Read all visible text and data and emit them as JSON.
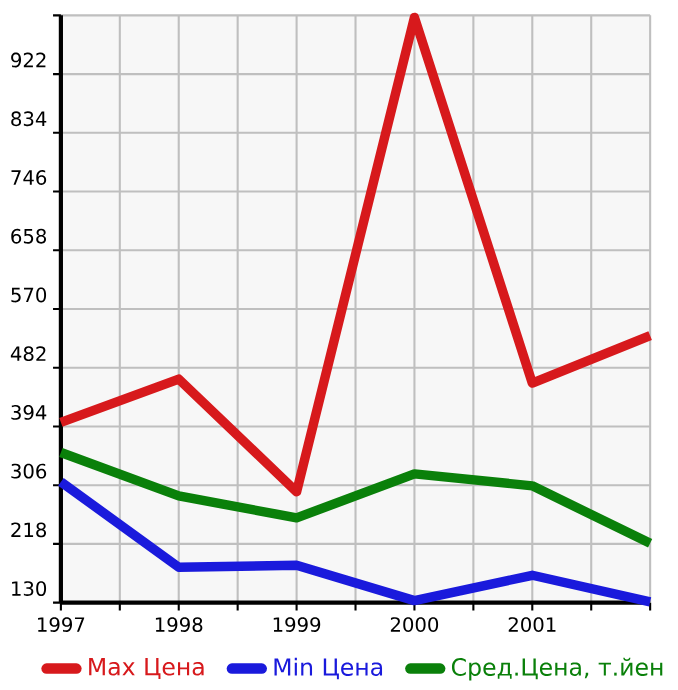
{
  "chart_data": {
    "type": "line",
    "x": [
      1997,
      1998,
      1999,
      2000,
      2001,
      2002
    ],
    "series": [
      {
        "name": "Max Цена",
        "color": "#d7191c",
        "values": [
          400,
          465,
          296,
          1007,
          459,
          530
        ]
      },
      {
        "name": "Min Цена",
        "color": "#1a1adc",
        "values": [
          311,
          183,
          186,
          133,
          171,
          131
        ]
      },
      {
        "name": "Сред.Цена, т.йен",
        "color": "#0a800a",
        "values": [
          355,
          290,
          257,
          323,
          305,
          219
        ]
      }
    ],
    "xlim": [
      1997,
      2002
    ],
    "xticks": [
      1997,
      {
        "value": 1997.5,
        "label": null
      },
      1998,
      {
        "value": 1998.5,
        "label": null
      },
      1999,
      {
        "value": 1999.5,
        "label": null
      },
      2000,
      {
        "value": 2000.5,
        "label": null
      },
      2001,
      {
        "value": 2001.5,
        "label": null
      },
      {
        "value": 2002,
        "label": null
      }
    ],
    "ylim": [
      130,
      1010
    ],
    "yticks": [
      130,
      218,
      306,
      394,
      482,
      570,
      658,
      746,
      834,
      922,
      {
        "value": 1010,
        "label": null
      }
    ],
    "grid": true,
    "legend": "bottom",
    "marker": "none",
    "line_style": "solid"
  }
}
